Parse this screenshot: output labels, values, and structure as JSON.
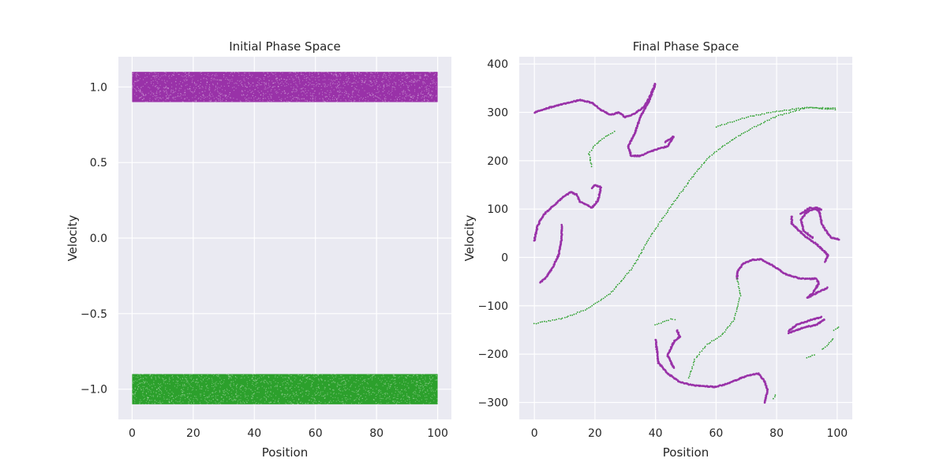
{
  "chart_data": [
    {
      "type": "scatter",
      "title": "Initial Phase Space",
      "xlabel": "Position",
      "ylabel": "Velocity",
      "xlim": [
        -4.5,
        104.5
      ],
      "ylim": [
        -1.2,
        1.2
      ],
      "xticks": [
        0,
        20,
        40,
        60,
        80,
        100
      ],
      "yticks": [
        -1.0,
        -0.5,
        0.0,
        0.5,
        1.0
      ],
      "xtick_labels": [
        "0",
        "20",
        "40",
        "60",
        "80",
        "100"
      ],
      "ytick_labels": [
        "−1.0",
        "−0.5",
        "0.0",
        "0.5",
        "1.0"
      ],
      "grid": true,
      "series": [
        {
          "color": "#9932a8",
          "x_range": [
            0,
            100
          ],
          "y_range": [
            0.9,
            1.1
          ],
          "distribution": "uniform band"
        },
        {
          "color": "#2ca02c",
          "x_range": [
            0,
            100
          ],
          "y_range": [
            -1.1,
            -0.9
          ],
          "distribution": "uniform band"
        }
      ]
    },
    {
      "type": "scatter",
      "title": "Final Phase Space",
      "xlabel": "Position",
      "ylabel": "Velocity",
      "xlim": [
        -5,
        105
      ],
      "ylim": [
        -335,
        415
      ],
      "xticks": [
        0,
        20,
        40,
        60,
        80,
        100
      ],
      "yticks": [
        -300,
        -200,
        -100,
        0,
        100,
        200,
        300,
        400
      ],
      "xtick_labels": [
        "0",
        "20",
        "40",
        "60",
        "80",
        "100"
      ],
      "ytick_labels": [
        "−300",
        "−200",
        "−100",
        "0",
        "100",
        "200",
        "300",
        "400"
      ],
      "grid": true,
      "series": [
        {
          "color": "#9932a8",
          "curves": [
            [
              [
                0,
                300
              ],
              [
                5,
                310
              ],
              [
                10,
                318
              ],
              [
                15,
                326
              ],
              [
                19,
                320
              ],
              [
                22,
                305
              ],
              [
                25,
                295
              ],
              [
                28,
                300
              ],
              [
                30,
                290
              ],
              [
                33,
                297
              ],
              [
                36,
                310
              ],
              [
                38,
                330
              ],
              [
                40,
                360
              ]
            ],
            [
              [
                40,
                360
              ],
              [
                38,
                325
              ],
              [
                35,
                290
              ],
              [
                33,
                255
              ],
              [
                31,
                230
              ],
              [
                32,
                210
              ],
              [
                35,
                210
              ],
              [
                38,
                218
              ],
              [
                41,
                225
              ],
              [
                44,
                230
              ],
              [
                46,
                250
              ],
              [
                43,
                238
              ]
            ],
            [
              [
                0,
                35
              ],
              [
                1,
                65
              ],
              [
                3,
                88
              ],
              [
                6,
                105
              ],
              [
                9,
                122
              ],
              [
                12,
                135
              ],
              [
                14,
                130
              ],
              [
                15,
                115
              ],
              [
                17,
                110
              ],
              [
                19,
                102
              ],
              [
                21,
                118
              ],
              [
                22,
                145
              ],
              [
                20,
                150
              ],
              [
                19,
                142
              ]
            ],
            [
              [
                2,
                -52
              ],
              [
                4,
                -40
              ],
              [
                6,
                -22
              ],
              [
                8,
                5
              ],
              [
                9,
                38
              ],
              [
                9,
                68
              ]
            ],
            [
              [
                40,
                -170
              ],
              [
                41,
                -218
              ],
              [
                44,
                -240
              ],
              [
                48,
                -258
              ],
              [
                53,
                -265
              ],
              [
                60,
                -268
              ],
              [
                65,
                -258
              ],
              [
                70,
                -245
              ],
              [
                74,
                -240
              ],
              [
                76,
                -256
              ],
              [
                77,
                -275
              ],
              [
                76,
                -302
              ]
            ],
            [
              [
                46,
                -228
              ],
              [
                44,
                -202
              ],
              [
                46,
                -175
              ],
              [
                48,
                -164
              ],
              [
                47,
                -149
              ]
            ],
            [
              [
                67,
                -45
              ],
              [
                67,
                -30
              ],
              [
                69,
                -12
              ],
              [
                72,
                -5
              ],
              [
                75,
                -4
              ],
              [
                79,
                -18
              ],
              [
                83,
                -35
              ],
              [
                88,
                -44
              ],
              [
                93,
                -44
              ],
              [
                94,
                -53
              ],
              [
                92,
                -74
              ],
              [
                90,
                -84
              ],
              [
                93,
                -74
              ],
              [
                97,
                -62
              ]
            ],
            [
              [
                84,
                -152
              ],
              [
                87,
                -138
              ],
              [
                90,
                -132
              ],
              [
                92,
                -128
              ],
              [
                95,
                -123
              ]
            ],
            [
              [
                84,
                -156
              ],
              [
                88,
                -147
              ],
              [
                91,
                -142
              ],
              [
                93,
                -140
              ],
              [
                96,
                -127
              ]
            ],
            [
              [
                85,
                85
              ],
              [
                85,
                70
              ],
              [
                89,
                46
              ],
              [
                93,
                28
              ],
              [
                97,
                5
              ],
              [
                96,
                -10
              ]
            ],
            [
              [
                88,
                90
              ],
              [
                91,
                103
              ],
              [
                94,
                97
              ],
              [
                95,
                68
              ],
              [
                98,
                41
              ],
              [
                101,
                37
              ]
            ],
            [
              [
                92,
                40
              ],
              [
                89,
                55
              ],
              [
                88,
                78
              ],
              [
                90,
                94
              ],
              [
                93,
                103
              ],
              [
                95,
                98
              ]
            ]
          ]
        },
        {
          "color": "#2ca02c",
          "curves": [
            [
              [
                0,
                -137
              ],
              [
                10,
                -125
              ],
              [
                18,
                -105
              ],
              [
                25,
                -75
              ],
              [
                32,
                -25
              ],
              [
                38,
                40
              ],
              [
                45,
                105
              ],
              [
                52,
                165
              ],
              [
                58,
                210
              ],
              [
                65,
                242
              ],
              [
                72,
                268
              ],
              [
                80,
                292
              ],
              [
                90,
                310
              ],
              [
                100,
                308
              ]
            ],
            [
              [
                60,
                270
              ],
              [
                70,
                290
              ],
              [
                80,
                302
              ],
              [
                90,
                310
              ],
              [
                100,
                306
              ]
            ],
            [
              [
                19,
                188
              ],
              [
                18,
                215
              ],
              [
                20,
                232
              ],
              [
                24,
                252
              ],
              [
                27,
                262
              ]
            ],
            [
              [
                40,
                -140
              ],
              [
                43,
                -132
              ],
              [
                45,
                -128
              ],
              [
                47,
                -130
              ]
            ],
            [
              [
                51,
                -250
              ],
              [
                53,
                -210
              ],
              [
                57,
                -180
              ],
              [
                62,
                -160
              ],
              [
                66,
                -128
              ],
              [
                68,
                -80
              ],
              [
                67,
                -40
              ]
            ],
            [
              [
                99,
                -150
              ],
              [
                101,
                -142
              ]
            ],
            [
              [
                95,
                -190
              ],
              [
                97,
                -180
              ],
              [
                99,
                -165
              ]
            ],
            [
              [
                79,
                -292
              ],
              [
                80,
                -282
              ]
            ],
            [
              [
                90,
                -208
              ],
              [
                93,
                -200
              ]
            ]
          ]
        }
      ]
    }
  ]
}
